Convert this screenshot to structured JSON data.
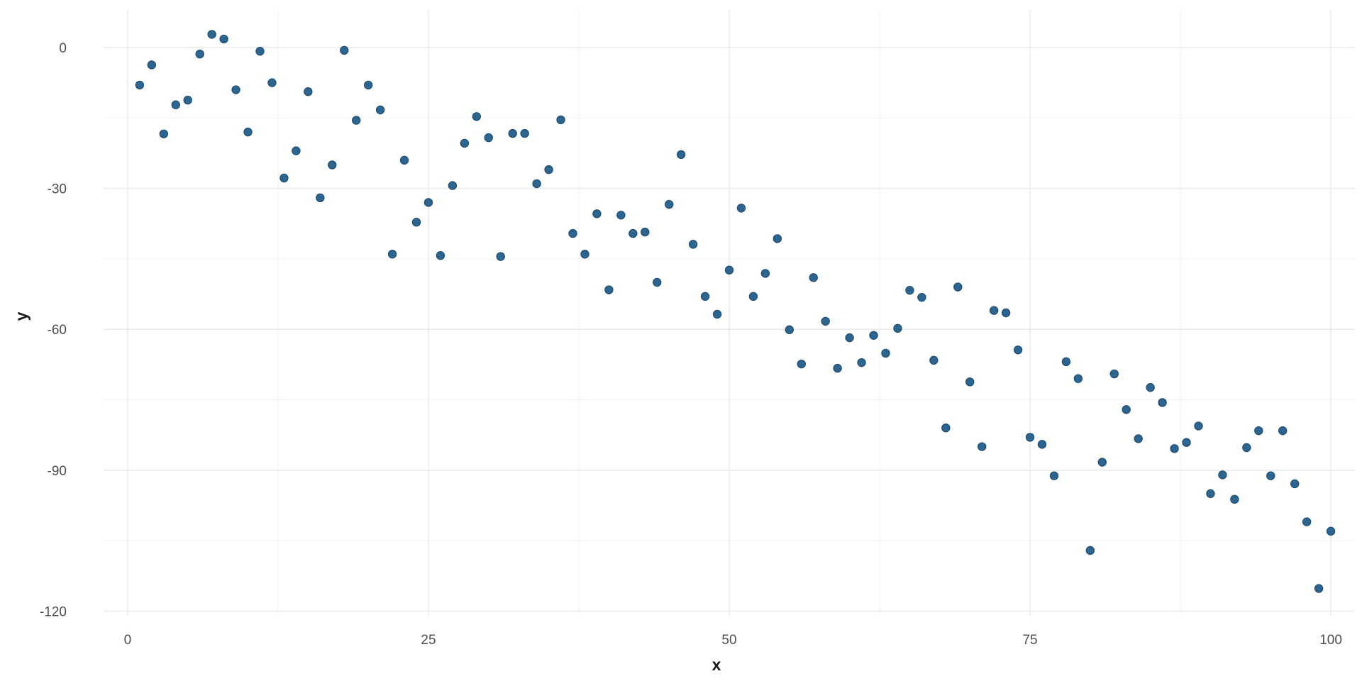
{
  "chart_data": {
    "type": "scatter",
    "title": "",
    "xlabel": "x",
    "ylabel": "y",
    "xlim": [
      -2,
      102
    ],
    "ylim": [
      -121,
      8
    ],
    "x_ticks": [
      0,
      25,
      50,
      75,
      100
    ],
    "y_ticks": [
      0,
      -30,
      -60,
      -90,
      -120
    ],
    "x_tick_labels": [
      "0",
      "25",
      "50",
      "75",
      "100"
    ],
    "y_tick_labels": [
      "0",
      "-30",
      "-60",
      "-90",
      "-120"
    ],
    "x_minor_ticks": [
      12.5,
      37.5,
      62.5,
      87.5
    ],
    "y_minor_ticks": [
      -15,
      -45,
      -75,
      -105
    ],
    "grid": true,
    "legend": "none",
    "point_color": "#2c6590",
    "point_stroke": "#1f4e73",
    "series": [
      {
        "x": [
          1,
          2,
          3,
          4,
          5,
          6,
          7,
          8,
          9,
          10,
          11,
          12,
          13,
          14,
          15,
          16,
          17,
          18,
          19,
          20,
          21,
          22,
          23,
          24,
          25,
          26,
          27,
          28,
          29,
          30,
          31,
          32,
          33,
          34,
          35,
          36,
          37,
          38,
          39,
          40,
          41,
          42,
          43,
          44,
          45,
          46,
          47,
          48,
          49,
          50,
          51,
          52,
          53,
          54,
          55,
          56,
          57,
          58,
          59,
          60,
          61,
          62,
          63,
          64,
          65,
          66,
          67,
          68,
          69,
          70,
          71,
          72,
          73,
          74,
          75,
          76,
          77,
          78,
          79,
          80,
          81,
          82,
          83,
          84,
          85,
          86,
          87,
          88,
          89,
          90,
          91,
          92,
          93,
          94,
          95,
          96,
          97,
          98,
          99,
          100
        ],
        "y": [
          -8,
          -3.7,
          -18.4,
          -12.2,
          -11.2,
          -1.4,
          2.8,
          1.8,
          -9,
          -18,
          -0.8,
          -7.5,
          -27.8,
          -22,
          -9.4,
          -32,
          -25,
          -0.6,
          -15.5,
          -8,
          -13.3,
          -44,
          -24,
          -37.2,
          -33,
          -44.3,
          -29.4,
          -20.4,
          -14.7,
          -19.2,
          -44.5,
          -18.3,
          -18.3,
          -29,
          -26,
          -15.4,
          -39.6,
          -44,
          -35.4,
          -51.6,
          -35.7,
          -39.6,
          -39.3,
          -50,
          -33.4,
          -22.8,
          -41.9,
          -53,
          -56.8,
          -47.4,
          -34.2,
          -53,
          -48.1,
          -40.7,
          -60.1,
          -67.4,
          -49,
          -58.3,
          -68.3,
          -61.8,
          -67.1,
          -61.3,
          -65.1,
          -59.8,
          -51.7,
          -53.2,
          -66.6,
          -81,
          -51,
          -71.2,
          -85,
          -56,
          -56.5,
          -64.4,
          -83,
          -84.5,
          -91.2,
          -66.9,
          -70.5,
          -107.1,
          -88.3,
          -69.5,
          -77.1,
          -83.3,
          -72.4,
          -75.6,
          -85.4,
          -84.1,
          -80.6,
          -95,
          -91,
          -96.2,
          -85.2,
          -81.6,
          -91.2,
          -81.6,
          -92.9,
          -101,
          -115.2,
          -103
        ]
      }
    ]
  }
}
